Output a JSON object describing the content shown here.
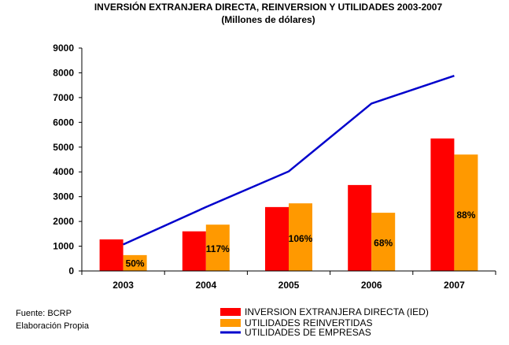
{
  "chart_data": {
    "type": "bar",
    "title": "INVERSIÓN EXTRANJERA DIRECTA, REINVERSION Y UTILIDADES 2003-2007",
    "subtitle": "(Millones de dólares)",
    "categories": [
      "2003",
      "2004",
      "2005",
      "2006",
      "2007"
    ],
    "ylim": [
      0,
      9000
    ],
    "ytick_step": 1000,
    "grid": false,
    "legend_position": "bottom",
    "series": [
      {
        "name": "INVERSION EXTRANJERA DIRECTA (IED)",
        "kind": "bar",
        "color": "#ff0000",
        "values": [
          1275,
          1600,
          2580,
          3470,
          5350
        ]
      },
      {
        "name": "UTILIDADES REINVERTIDAS",
        "kind": "bar",
        "color": "#ff9900",
        "values": [
          640,
          1870,
          2730,
          2350,
          4700
        ]
      },
      {
        "name": "UTILIDADES DE EMPRESAS",
        "kind": "line",
        "color": "#0000cc",
        "values": [
          1070,
          2580,
          4020,
          6760,
          7880
        ]
      }
    ],
    "data_labels": [
      "50%",
      "117%",
      "106%",
      "68%",
      "88%"
    ]
  },
  "footer": {
    "source": "Fuente: BCRP",
    "prepared": "Elaboración Propia"
  }
}
